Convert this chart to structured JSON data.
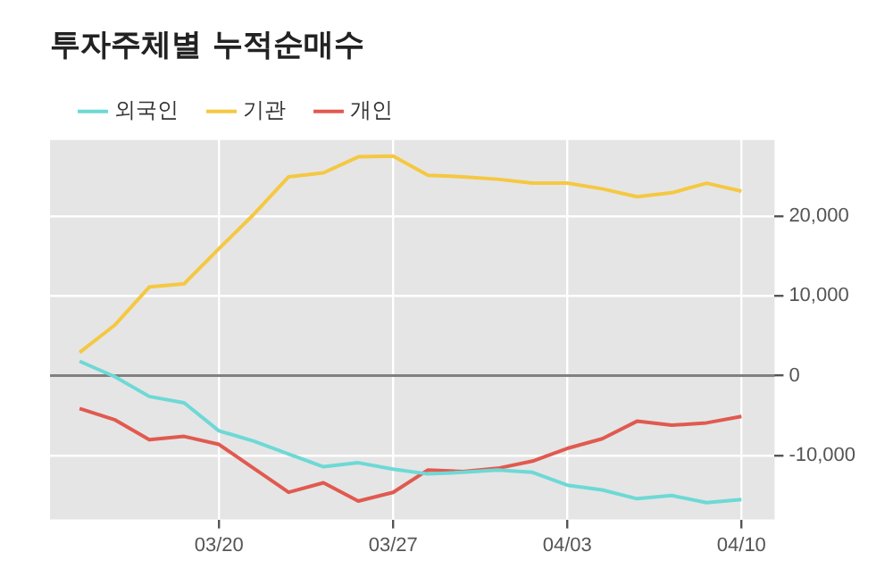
{
  "chart_data": {
    "type": "line",
    "title": "투자주체별 누적순매수",
    "categories": [
      null,
      null,
      null,
      null,
      "03/20",
      null,
      null,
      null,
      null,
      "03/27",
      null,
      null,
      null,
      null,
      "04/03",
      null,
      null,
      null,
      null,
      "04/10"
    ],
    "series": [
      {
        "name": "외국인",
        "color": "#6dd9d6",
        "values": [
          1800,
          -100,
          -2600,
          -3400,
          -6900,
          -8200,
          -9800,
          -11400,
          -10900,
          -11700,
          -12300,
          -12100,
          -11800,
          -12100,
          -13700,
          -14300,
          -15400,
          -15000,
          -15900,
          -15500
        ]
      },
      {
        "name": "기관",
        "color": "#f5c842",
        "values": [
          2900,
          6300,
          11100,
          11500,
          15900,
          20200,
          24900,
          25400,
          27400,
          27500,
          25100,
          24900,
          24600,
          24100,
          24100,
          23400,
          22400,
          22900,
          24100,
          23100
        ]
      },
      {
        "name": "개인",
        "color": "#e05a50",
        "values": [
          -4100,
          -5500,
          -8000,
          -7600,
          -8600,
          -11600,
          -14600,
          -13400,
          -15700,
          -14600,
          -11800,
          -12000,
          -11600,
          -10700,
          -9100,
          -7900,
          -5700,
          -6200,
          -5900,
          -5100
        ]
      }
    ],
    "ylim": [
      -18000,
      29500
    ],
    "yticks": [
      {
        "value": -10000,
        "label": "-10,000"
      },
      0,
      {
        "value": 10000,
        "label": "10,000"
      },
      {
        "value": 20000,
        "label": "20,000"
      }
    ],
    "ref_lines": [
      {
        "axis": "y",
        "value": 0,
        "color": "#808080"
      }
    ],
    "grid": true,
    "legend": "top left",
    "marker": "none",
    "line_style": "solid"
  }
}
